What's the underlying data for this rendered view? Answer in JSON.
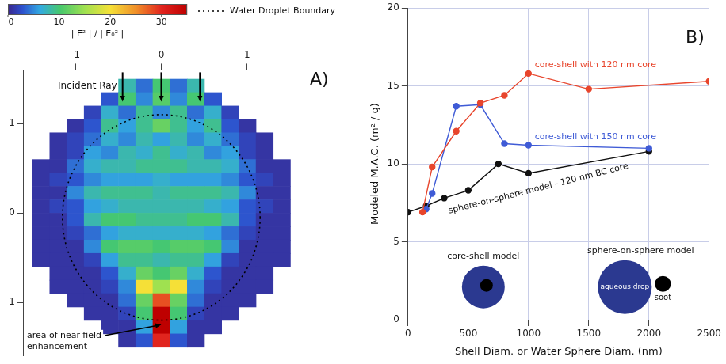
{
  "chart_data": [
    {
      "type": "heatmap",
      "panel_label": "A)",
      "x": [
        -1.4,
        -1.2,
        -1.0,
        -0.8,
        -0.6,
        -0.4,
        -0.2,
        0,
        0.2,
        0.4,
        0.6,
        0.8,
        1.0,
        1.2,
        1.4
      ],
      "y": [
        -1.425,
        -1.275,
        -1.125,
        -0.975,
        -0.825,
        -0.675,
        -0.525,
        -0.375,
        -0.225,
        -0.075,
        0.075,
        0.225,
        0.375,
        0.525,
        0.675,
        0.825,
        0.975,
        1.125,
        1.275,
        1.425
      ],
      "cells": [
        [
          null,
          null,
          null,
          null,
          null,
          8,
          4,
          10,
          4,
          8,
          null,
          null,
          null,
          null,
          null
        ],
        [
          null,
          null,
          null,
          null,
          3,
          10,
          5,
          11,
          5,
          10,
          3,
          null,
          null,
          null,
          null
        ],
        [
          null,
          null,
          null,
          2,
          7,
          4,
          9,
          5,
          9,
          4,
          7,
          2,
          null,
          null,
          null
        ],
        [
          null,
          null,
          1,
          3,
          9,
          6,
          9,
          12,
          9,
          6,
          9,
          3,
          1,
          null,
          null
        ],
        [
          null,
          1,
          2,
          4,
          7,
          5,
          8,
          6,
          8,
          5,
          7,
          4,
          2,
          1,
          null
        ],
        [
          null,
          1,
          2,
          6,
          5,
          8,
          7,
          9,
          7,
          8,
          5,
          6,
          2,
          1,
          null
        ],
        [
          1,
          1,
          4,
          7,
          8,
          8,
          9,
          9,
          9,
          8,
          8,
          7,
          4,
          1,
          1
        ],
        [
          1,
          2,
          3,
          5,
          6,
          6,
          6,
          7,
          6,
          6,
          6,
          5,
          3,
          2,
          1
        ],
        [
          1,
          1,
          5,
          8,
          9,
          9,
          9,
          8,
          9,
          9,
          9,
          8,
          5,
          1,
          1
        ],
        [
          1,
          2,
          3,
          6,
          7,
          8,
          8,
          8,
          8,
          8,
          7,
          6,
          3,
          2,
          1
        ],
        [
          1,
          1,
          3,
          8,
          10,
          10,
          9,
          9,
          9,
          10,
          10,
          8,
          3,
          1,
          1
        ],
        [
          1,
          1,
          2,
          4,
          6,
          7,
          7,
          7,
          7,
          7,
          6,
          4,
          2,
          1,
          1
        ],
        [
          1,
          1,
          1,
          5,
          10,
          11,
          11,
          10,
          11,
          11,
          10,
          5,
          1,
          1,
          1
        ],
        [
          1,
          1,
          1,
          2,
          6,
          9,
          9,
          8,
          9,
          9,
          6,
          2,
          1,
          1,
          1
        ],
        [
          null,
          1,
          1,
          1,
          3,
          7,
          12,
          10,
          12,
          7,
          3,
          1,
          1,
          1,
          null
        ],
        [
          null,
          1,
          1,
          1,
          2,
          5,
          20,
          15,
          20,
          5,
          2,
          1,
          1,
          1,
          null
        ],
        [
          null,
          null,
          1,
          1,
          1,
          4,
          12,
          28,
          12,
          4,
          1,
          1,
          1,
          null,
          null
        ],
        [
          null,
          null,
          null,
          1,
          1,
          2,
          10,
          35,
          10,
          2,
          1,
          1,
          null,
          null,
          null
        ],
        [
          null,
          null,
          null,
          null,
          1,
          1,
          6,
          35,
          6,
          1,
          1,
          null,
          null,
          null,
          null
        ],
        [
          null,
          null,
          null,
          null,
          null,
          1,
          3,
          30,
          3,
          1,
          null,
          null,
          null,
          null,
          null
        ]
      ],
      "xlim": [
        -1.6,
        1.6
      ],
      "ylim": [
        1.6,
        -1.6
      ],
      "xticks": [
        -1,
        0,
        1
      ],
      "yticks": [
        -1,
        0,
        1
      ],
      "grid": false,
      "colorbar": {
        "label": "| E² | / | E₀² |",
        "range": [
          0,
          35
        ],
        "ticks": [
          0,
          10,
          20,
          30
        ]
      },
      "droplet_boundary": {
        "label": "Water Droplet Boundary",
        "center": [
          0,
          0.05
        ],
        "radius": 1.15,
        "line_style": "dotted"
      },
      "incident_ray": {
        "label": "Incident Ray",
        "x": [
          -0.45,
          0,
          0.45
        ]
      },
      "annotation": {
        "text": "area of near-field enhancement",
        "x": 0,
        "y": 1.25
      }
    },
    {
      "type": "line",
      "panel_label": "B)",
      "x_label": "Shell Diam. or Water Sphere Diam. (nm)",
      "y_label": "Modeled M.A.C. (m² / g)",
      "xlim": [
        0,
        2500
      ],
      "xticks": [
        0,
        500,
        1000,
        1500,
        2000,
        2500
      ],
      "ylim": [
        0,
        20
      ],
      "yticks": [
        0,
        5,
        10,
        15,
        20
      ],
      "grid": true,
      "series": [
        {
          "name": "core-shell with 120 nm core",
          "color": "#e8452c",
          "marker": "circle",
          "x": [
            120,
            200,
            400,
            600,
            800,
            1000,
            1500,
            2500
          ],
          "values": [
            6.9,
            9.8,
            12.1,
            13.9,
            14.4,
            15.8,
            14.8,
            15.3
          ]
        },
        {
          "name": "core-shell with 150 nm core",
          "color": "#3f5bd6",
          "marker": "circle",
          "x": [
            150,
            200,
            400,
            600,
            800,
            1000,
            2000
          ],
          "values": [
            7.1,
            8.1,
            13.7,
            13.8,
            11.3,
            11.2,
            11.0
          ]
        },
        {
          "name": "sphere-on-sphere model - 120 nm BC core",
          "color": "#111111",
          "marker": "circle",
          "x": [
            0,
            150,
            300,
            500,
            750,
            1000,
            2000
          ],
          "values": [
            6.9,
            7.3,
            7.8,
            8.3,
            10.0,
            9.4,
            10.8
          ]
        }
      ],
      "insets": [
        {
          "label": "core-shell model"
        },
        {
          "label": "sphere-on-sphere model",
          "parts": [
            "aqueous drop",
            "soot"
          ]
        }
      ]
    }
  ]
}
